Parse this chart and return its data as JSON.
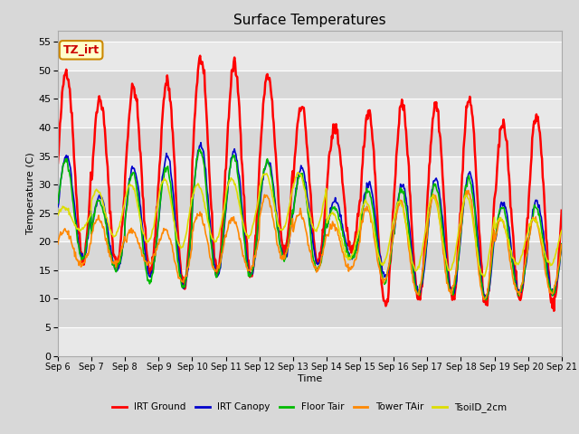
{
  "title": "Surface Temperatures",
  "xlabel": "Time",
  "ylabel": "Temperature (C)",
  "ylim": [
    0,
    57
  ],
  "yticks": [
    0,
    5,
    10,
    15,
    20,
    25,
    30,
    35,
    40,
    45,
    50,
    55
  ],
  "date_labels": [
    "Sep 6",
    "Sep 7",
    "Sep 8",
    "Sep 9",
    "Sep 10",
    "Sep 11",
    "Sep 12",
    "Sep 13",
    "Sep 14",
    "Sep 15",
    "Sep 16",
    "Sep 17",
    "Sep 18",
    "Sep 19",
    "Sep 20",
    "Sep 21"
  ],
  "series_names": [
    "IRT Ground",
    "IRT Canopy",
    "Floor Tair",
    "Tower TAir",
    "TsoilD_2cm"
  ],
  "series_colors": [
    "#ff0000",
    "#0000cc",
    "#00bb00",
    "#ff8800",
    "#dddd00"
  ],
  "series_linewidths": [
    1.8,
    1.2,
    1.2,
    1.2,
    1.2
  ],
  "annotation_text": "TZ_irt",
  "background_color": "#d8d8d8",
  "stripe_color": "#e8e8e8",
  "n_days": 15,
  "pts_per_day": 48,
  "irt_ground_peaks": [
    50,
    45,
    47,
    48,
    52,
    51,
    49,
    44,
    40,
    43,
    44,
    44,
    45,
    41,
    42
  ],
  "irt_ground_mins": [
    17,
    16,
    15,
    12,
    15,
    14,
    18,
    16,
    18,
    9,
    10,
    10,
    9,
    10,
    9
  ],
  "canopy_peaks": [
    35,
    28,
    33,
    35,
    37,
    36,
    34,
    33,
    27,
    30,
    30,
    31,
    32,
    27,
    27
  ],
  "canopy_mins": [
    17,
    15,
    14,
    12,
    14,
    14,
    17,
    16,
    17,
    14,
    11,
    11,
    10,
    11,
    11
  ],
  "floor_peaks": [
    34,
    27,
    32,
    33,
    36,
    35,
    34,
    32,
    26,
    29,
    29,
    30,
    31,
    26,
    26
  ],
  "floor_mins": [
    17,
    15,
    13,
    12,
    14,
    14,
    17,
    15,
    17,
    13,
    11,
    11,
    10,
    11,
    11
  ],
  "tower_peaks": [
    22,
    24,
    22,
    22,
    25,
    24,
    28,
    25,
    23,
    26,
    27,
    28,
    29,
    24,
    24
  ],
  "tower_mins": [
    16,
    16,
    16,
    13,
    15,
    15,
    17,
    15,
    15,
    13,
    11,
    11,
    10,
    11,
    11
  ],
  "soil_peaks": [
    26,
    29,
    30,
    31,
    30,
    31,
    32,
    32,
    25,
    27,
    27,
    28,
    28,
    24,
    24
  ],
  "soil_mins": [
    22,
    21,
    20,
    19,
    20,
    21,
    22,
    22,
    17,
    16,
    15,
    15,
    14,
    16,
    16
  ]
}
